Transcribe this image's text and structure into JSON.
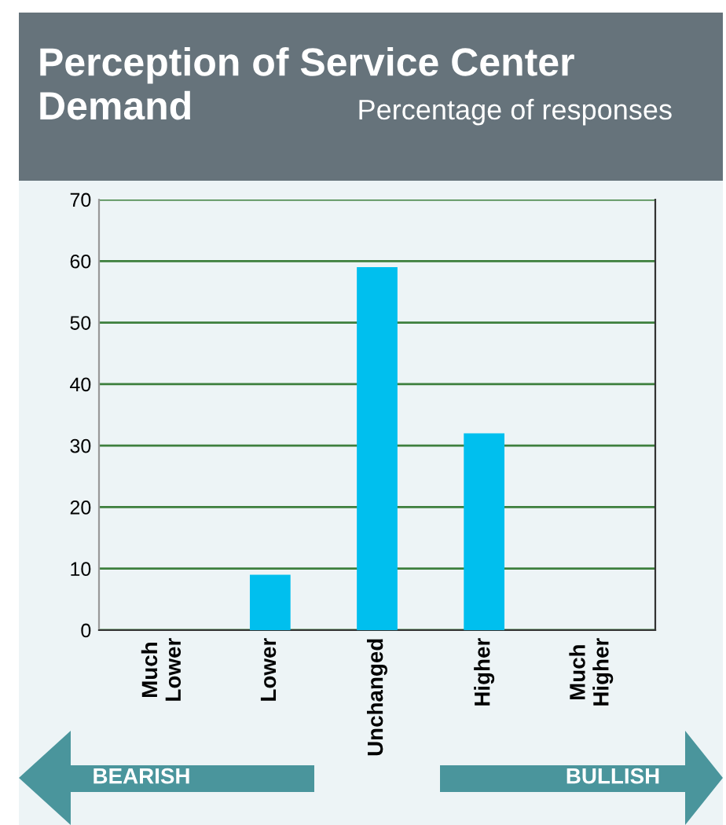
{
  "chart_data": {
    "type": "bar",
    "title": "Perception of Service Center Demand",
    "subtitle": "Percentage of responses",
    "categories": [
      "Much Lower",
      "Lower",
      "Unchanged",
      "Higher",
      "Much Higher"
    ],
    "values": [
      0,
      9,
      59,
      32,
      0
    ],
    "color": "#00bfee",
    "ylim": [
      0,
      70
    ],
    "yticks": [
      0,
      10,
      20,
      30,
      40,
      50,
      60,
      70
    ],
    "grid": "y",
    "annotations": [
      "BEARISH",
      "BULLISH"
    ]
  }
}
